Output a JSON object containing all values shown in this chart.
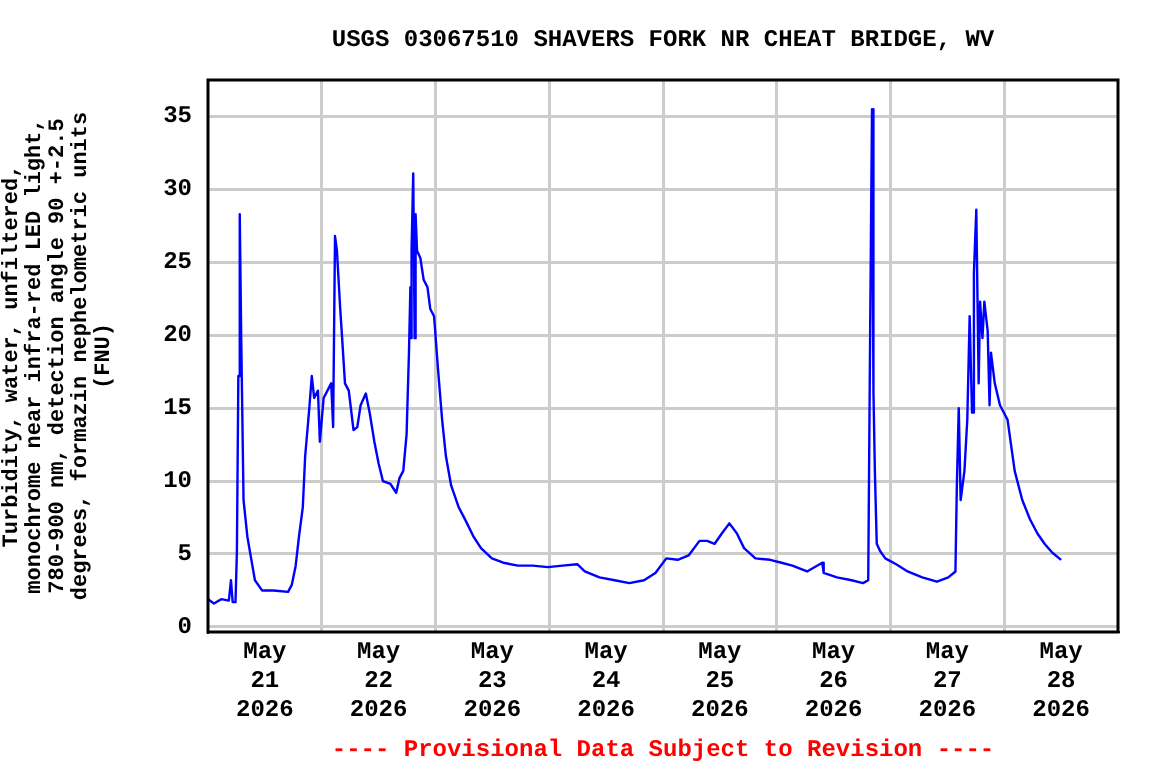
{
  "chart_data": {
    "type": "line",
    "title": "USGS 03067510 SHAVERS FORK NR CHEAT BRIDGE, WV",
    "ylabel": "Turbidity, water, unfiltered, monochrome near infra-red LED light, 780-900 nm, detection angle 90 +-2.5 degrees, formazin nephelometric units (FNU)",
    "annotations": [
      "---- Provisional Data Subject to Revision ----"
    ],
    "xlim": [
      "2026-05-21T00:00",
      "2026-05-29T00:00"
    ],
    "xticks": [
      {
        "value": "2026-05-21T12:00",
        "label": "May\n21\n2026"
      },
      {
        "value": "2026-05-22T00:00",
        "label": null
      },
      {
        "value": "2026-05-22T12:00",
        "label": "May\n22\n2026"
      },
      {
        "value": "2026-05-23T00:00",
        "label": null
      },
      {
        "value": "2026-05-23T12:00",
        "label": "May\n23\n2026"
      },
      {
        "value": "2026-05-24T00:00",
        "label": null
      },
      {
        "value": "2026-05-24T12:00",
        "label": "May\n24\n2026"
      },
      {
        "value": "2026-05-25T00:00",
        "label": null
      },
      {
        "value": "2026-05-25T12:00",
        "label": "May\n25\n2026"
      },
      {
        "value": "2026-05-26T00:00",
        "label": null
      },
      {
        "value": "2026-05-26T12:00",
        "label": "May\n26\n2026"
      },
      {
        "value": "2026-05-27T00:00",
        "label": null
      },
      {
        "value": "2026-05-27T12:00",
        "label": "May\n27\n2026"
      },
      {
        "value": "2026-05-28T00:00",
        "label": null
      },
      {
        "value": "2026-05-28T12:00",
        "label": "May\n28\n2026"
      }
    ],
    "ylim": [
      -0.35,
      37.5
    ],
    "yticks": [
      0,
      5,
      10,
      15,
      20,
      25,
      30,
      35
    ],
    "grid": true,
    "legend": false,
    "marker": "none",
    "line_style": "solid",
    "series": [
      {
        "color": "#0000ff",
        "x": [
          "2026-05-21T00:00",
          "2026-05-21T01:15",
          "2026-05-21T02:48",
          "2026-05-21T04:24",
          "2026-05-21T04:51",
          "2026-05-21T05:12",
          "2026-05-21T05:48",
          "2026-05-21T06:06",
          "2026-05-21T06:24",
          "2026-05-21T06:42",
          "2026-05-21T07:00",
          "2026-05-21T07:30",
          "2026-05-21T08:18",
          "2026-05-21T09:06",
          "2026-05-21T09:54",
          "2026-05-21T11:24",
          "2026-05-21T13:48",
          "2026-05-21T16:54",
          "2026-05-21T17:42",
          "2026-05-21T18:30",
          "2026-05-21T19:12",
          "2026-05-21T20:00",
          "2026-05-21T20:30",
          "2026-05-21T21:18",
          "2026-05-21T21:54",
          "2026-05-21T22:24",
          "2026-05-21T23:12",
          "2026-05-21T23:36",
          "2026-05-22T00:24",
          "2026-05-22T01:12",
          "2026-05-22T02:00",
          "2026-05-22T02:24",
          "2026-05-22T02:48",
          "2026-05-22T03:12",
          "2026-05-22T03:54",
          "2026-05-22T04:18",
          "2026-05-22T04:54",
          "2026-05-22T05:42",
          "2026-05-22T06:42",
          "2026-05-22T07:30",
          "2026-05-22T08:12",
          "2026-05-22T09:18",
          "2026-05-22T10:06",
          "2026-05-22T11:06",
          "2026-05-22T12:00",
          "2026-05-22T12:54",
          "2026-05-22T14:30",
          "2026-05-22T15:42",
          "2026-05-22T16:24",
          "2026-05-22T17:12",
          "2026-05-22T17:54",
          "2026-05-22T18:24",
          "2026-05-22T18:42",
          "2026-05-22T18:54",
          "2026-05-22T19:00",
          "2026-05-22T19:18",
          "2026-05-22T19:36",
          "2026-05-22T19:48",
          "2026-05-22T20:06",
          "2026-05-22T20:48",
          "2026-05-22T21:30",
          "2026-05-22T22:18",
          "2026-05-22T22:54",
          "2026-05-22T23:42",
          "2026-05-23T00:30",
          "2026-05-23T01:24",
          "2026-05-23T02:12",
          "2026-05-23T03:18",
          "2026-05-23T04:54",
          "2026-05-23T06:30",
          "2026-05-23T08:00",
          "2026-05-23T09:36",
          "2026-05-23T11:54",
          "2026-05-23T14:18",
          "2026-05-23T17:24",
          "2026-05-23T20:30",
          "2026-05-23T23:42",
          "2026-05-24T02:48",
          "2026-05-24T05:54",
          "2026-05-24T07:30",
          "2026-05-24T10:36",
          "2026-05-24T13:48",
          "2026-05-24T16:54",
          "2026-05-24T20:00",
          "2026-05-24T22:24",
          "2026-05-25T00:42",
          "2026-05-25T03:06",
          "2026-05-25T05:24",
          "2026-05-25T07:42",
          "2026-05-25T09:18",
          "2026-05-25T10:54",
          "2026-05-25T12:24",
          "2026-05-25T14:00",
          "2026-05-25T15:36",
          "2026-05-25T17:06",
          "2026-05-25T19:30",
          "2026-05-25T22:36",
          "2026-05-26T01:00",
          "2026-05-26T03:18",
          "2026-05-26T06:24",
          "2026-05-26T09:36",
          "2026-05-26T09:54",
          "2026-05-26T12:42",
          "2026-05-26T15:48",
          "2026-05-26T18:12",
          "2026-05-26T19:18",
          "2026-05-26T19:42",
          "2026-05-26T20:06",
          "2026-05-26T20:24",
          "2026-05-26T20:42",
          "2026-05-26T21:06",
          "2026-05-26T21:48",
          "2026-05-26T22:54",
          "2026-05-27T01:12",
          "2026-05-27T03:36",
          "2026-05-27T06:42",
          "2026-05-27T09:48",
          "2026-05-27T12:12",
          "2026-05-27T13:42",
          "2026-05-27T14:00",
          "2026-05-27T14:24",
          "2026-05-27T14:48",
          "2026-05-27T15:36",
          "2026-05-27T16:12",
          "2026-05-27T16:42",
          "2026-05-27T17:12",
          "2026-05-27T17:36",
          "2026-05-27T18:06",
          "2026-05-27T18:36",
          "2026-05-27T18:54",
          "2026-05-27T19:24",
          "2026-05-27T19:48",
          "2026-05-27T20:30",
          "2026-05-27T20:54",
          "2026-05-27T21:12",
          "2026-05-27T22:00",
          "2026-05-27T23:06",
          "2026-05-28T00:42",
          "2026-05-28T02:12",
          "2026-05-28T03:48",
          "2026-05-28T05:24",
          "2026-05-28T07:00",
          "2026-05-28T08:30",
          "2026-05-28T10:06",
          "2026-05-28T12:00"
        ],
        "values": [
          1.9,
          1.6,
          1.9,
          1.8,
          3.2,
          1.7,
          1.7,
          5.2,
          17.2,
          28.3,
          20.0,
          8.7,
          6.2,
          4.7,
          3.2,
          2.5,
          2.5,
          2.4,
          2.9,
          4.2,
          6.2,
          8.2,
          11.7,
          14.7,
          17.2,
          15.7,
          16.2,
          12.7,
          15.7,
          16.2,
          16.7,
          13.7,
          26.8,
          25.8,
          21.8,
          19.8,
          16.7,
          16.2,
          13.5,
          13.7,
          15.2,
          16.0,
          14.7,
          12.7,
          11.2,
          10.0,
          9.8,
          9.2,
          10.2,
          10.7,
          13.2,
          18.8,
          23.3,
          19.8,
          25.8,
          31.1,
          19.8,
          28.3,
          25.8,
          25.3,
          23.8,
          23.3,
          21.8,
          21.3,
          17.8,
          14.2,
          11.7,
          9.7,
          8.2,
          7.2,
          6.2,
          5.4,
          4.7,
          4.4,
          4.2,
          4.2,
          4.1,
          4.2,
          4.3,
          3.8,
          3.4,
          3.2,
          3.0,
          3.2,
          3.7,
          4.7,
          4.6,
          4.9,
          5.9,
          5.9,
          5.7,
          6.4,
          7.1,
          6.4,
          5.4,
          4.7,
          4.6,
          4.4,
          4.2,
          3.8,
          4.4,
          3.7,
          3.4,
          3.2,
          3.0,
          3.2,
          20.0,
          35.5,
          16.2,
          10.7,
          5.7,
          5.2,
          4.7,
          4.3,
          3.8,
          3.4,
          3.1,
          3.4,
          3.8,
          9.7,
          15.0,
          8.7,
          10.7,
          14.2,
          21.3,
          14.7,
          24.3,
          28.6,
          16.7,
          22.3,
          19.8,
          22.3,
          20.3,
          15.2,
          18.8,
          16.7,
          15.2,
          14.2,
          10.7,
          8.7,
          7.4,
          6.4,
          5.7,
          5.1,
          4.6
        ]
      }
    ]
  }
}
